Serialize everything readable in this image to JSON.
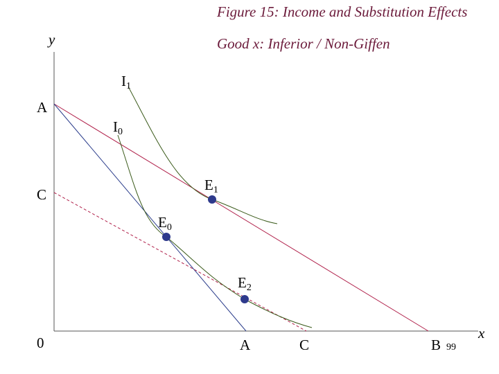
{
  "header": {
    "title": "Figure 15: Income and Substitution Effects",
    "subtitle": "Good x: Inferior / Non-Giffen"
  },
  "axes": {
    "y": "y",
    "x": "x",
    "origin": "0"
  },
  "axis_points": {
    "y_axis": [
      "A",
      "C"
    ],
    "x_axis": [
      "A",
      "C",
      "B"
    ]
  },
  "curves": [
    {
      "label": "I",
      "sub": "1"
    },
    {
      "label": "I",
      "sub": "0"
    }
  ],
  "points": [
    {
      "label": "E",
      "sub": "1"
    },
    {
      "label": "E",
      "sub": "0"
    },
    {
      "label": "E",
      "sub": "2"
    }
  ],
  "page_number": "99"
}
